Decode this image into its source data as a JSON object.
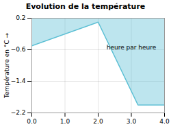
{
  "chart_data": {
    "type": "area",
    "title": "Evolution de la température",
    "x": [
      0,
      2,
      3.2,
      4
    ],
    "values": [
      -0.5,
      0.1,
      -2.0,
      -2.0
    ],
    "xlim": [
      0,
      4
    ],
    "ylim": [
      -2.2,
      0.2
    ],
    "xticks": [
      0,
      1,
      2,
      3,
      4
    ],
    "yticks": [
      0.2,
      -0.6,
      -1.4,
      -2.2
    ],
    "ylabel": "Température en °C",
    "annotations": [
      "heure par heure"
    ],
    "color": "#5bbfd4",
    "grid": true
  }
}
